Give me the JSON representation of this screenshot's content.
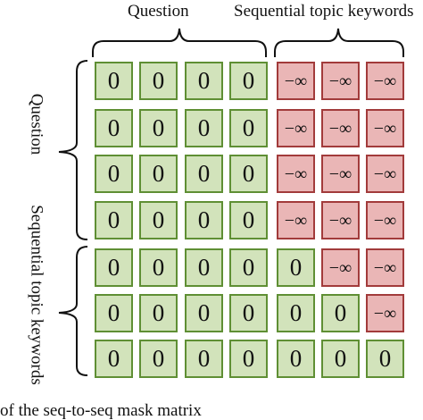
{
  "labels": {
    "top_question": "Question",
    "top_keywords": "Sequential topic keywords",
    "left_question": "Question",
    "left_keywords": "Sequential topic keywords"
  },
  "matrix": [
    [
      "0",
      "0",
      "0",
      "0",
      "−∞",
      "−∞",
      "−∞"
    ],
    [
      "0",
      "0",
      "0",
      "0",
      "−∞",
      "−∞",
      "−∞"
    ],
    [
      "0",
      "0",
      "0",
      "0",
      "−∞",
      "−∞",
      "−∞"
    ],
    [
      "0",
      "0",
      "0",
      "0",
      "−∞",
      "−∞",
      "−∞"
    ],
    [
      "0",
      "0",
      "0",
      "0",
      "0",
      "−∞",
      "−∞"
    ],
    [
      "0",
      "0",
      "0",
      "0",
      "0",
      "0",
      "−∞"
    ],
    [
      "0",
      "0",
      "0",
      "0",
      "0",
      "0",
      "0"
    ]
  ],
  "caption_fragment": "of the seq-to-seq mask matrix",
  "colors": {
    "zero_fill": "#d2e3bb",
    "zero_border": "#5f8f34",
    "ninf_fill": "#eab6b6",
    "ninf_border": "#a23b3b"
  }
}
